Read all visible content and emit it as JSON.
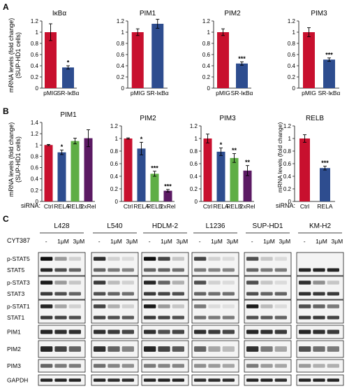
{
  "panels": {
    "a": {
      "letter": "A",
      "ylabel_line1": "mRNA levels (fold change)",
      "ylabel_line2": "(SUP-HD1 cells)"
    },
    "b": {
      "letter": "B",
      "ylabel_line1": "mRNA levels (fold change)",
      "ylabel_line2": "(SUP-HD1 cells)",
      "ylabel_relb": "mRNA levels (fold change)",
      "sirna_label": "siRNA:"
    },
    "c": {
      "letter": "C",
      "treatment_label": "CYT387"
    }
  },
  "colors": {
    "pmig": "#c8102e",
    "relb_green": "#5fae45",
    "sr_blue": "#2e4d8f",
    "rel_purple": "#5b1a63"
  },
  "chart_data": [
    {
      "type": "bar",
      "panel": "A",
      "title": "IκBα",
      "categories": [
        "pMIG",
        "SR-IκBα"
      ],
      "values": [
        1.0,
        0.37
      ],
      "errors": [
        0.15,
        0.03
      ],
      "significance": [
        "",
        "*"
      ],
      "colors": [
        "#c8102e",
        "#2e4d8f"
      ],
      "ylim": [
        0,
        1.2
      ],
      "yticks": [
        "0",
        "0.2",
        "0.4",
        "0.6",
        "0.8",
        "1",
        "1.2"
      ]
    },
    {
      "type": "bar",
      "panel": "A",
      "title": "PIM1",
      "categories": [
        "pMIG",
        "SR-IκBα"
      ],
      "values": [
        1.0,
        1.15
      ],
      "errors": [
        0.06,
        0.08
      ],
      "significance": [
        "",
        ""
      ],
      "colors": [
        "#c8102e",
        "#2e4d8f"
      ],
      "ylim": [
        0,
        1.2
      ],
      "yticks": [
        "0",
        "0.2",
        "0.4",
        "0.6",
        "0.8",
        "1",
        "1.2"
      ]
    },
    {
      "type": "bar",
      "panel": "A",
      "title": "PIM2",
      "categories": [
        "pMIG",
        "SR-IκBα"
      ],
      "values": [
        1.0,
        0.44
      ],
      "errors": [
        0.06,
        0.03
      ],
      "significance": [
        "",
        "***"
      ],
      "colors": [
        "#c8102e",
        "#2e4d8f"
      ],
      "ylim": [
        0,
        1.2
      ],
      "yticks": [
        "0",
        "0.2",
        "0.4",
        "0.6",
        "0.8",
        "1",
        "1.2"
      ]
    },
    {
      "type": "bar",
      "panel": "A",
      "title": "PIM3",
      "categories": [
        "pMIG",
        "SR-IκBα"
      ],
      "values": [
        1.0,
        0.51
      ],
      "errors": [
        0.08,
        0.03
      ],
      "significance": [
        "",
        "***"
      ],
      "colors": [
        "#c8102e",
        "#2e4d8f"
      ],
      "ylim": [
        0,
        1.2
      ],
      "yticks": [
        "0",
        "0.2",
        "0.4",
        "0.6",
        "0.8",
        "1",
        "1.2"
      ]
    },
    {
      "type": "bar",
      "panel": "B",
      "title": "PIM1",
      "categories": [
        "Ctrl",
        "RELA",
        "RELB",
        "2xRel"
      ],
      "values": [
        1.0,
        0.87,
        1.07,
        1.12
      ],
      "errors": [
        0.01,
        0.04,
        0.05,
        0.15
      ],
      "significance": [
        "",
        "*",
        "",
        ""
      ],
      "colors": [
        "#c8102e",
        "#2e4d8f",
        "#5fae45",
        "#5b1a63"
      ],
      "ylim": [
        0,
        1.4
      ],
      "yticks": [
        "0",
        "0.2",
        "0.4",
        "0.6",
        "0.8",
        "1",
        "1.2",
        "1.4"
      ]
    },
    {
      "type": "bar",
      "panel": "B",
      "title": "PIM2",
      "categories": [
        "Ctrl",
        "RELA",
        "RELB",
        "2xRel"
      ],
      "values": [
        1.0,
        0.84,
        0.44,
        0.17
      ],
      "errors": [
        0.01,
        0.1,
        0.04,
        0.02
      ],
      "significance": [
        "",
        "*",
        "***",
        "***"
      ],
      "colors": [
        "#c8102e",
        "#2e4d8f",
        "#5fae45",
        "#5b1a63"
      ],
      "ylim": [
        0,
        1.2
      ],
      "yticks": [
        "0",
        "0.2",
        "0.4",
        "0.6",
        "0.8",
        "1",
        "1.2"
      ]
    },
    {
      "type": "bar",
      "panel": "B",
      "title": "PIM3",
      "categories": [
        "Ctrl",
        "RELA",
        "RELB",
        "2xRel"
      ],
      "values": [
        1.0,
        0.79,
        0.69,
        0.49
      ],
      "errors": [
        0.07,
        0.06,
        0.07,
        0.08
      ],
      "significance": [
        "",
        "*",
        "**",
        "**"
      ],
      "colors": [
        "#c8102e",
        "#2e4d8f",
        "#5fae45",
        "#5b1a63"
      ],
      "ylim": [
        0,
        1.2
      ],
      "yticks": [
        "0",
        "0.2",
        "0.4",
        "0.6",
        "0.8",
        "1",
        "1.2"
      ]
    },
    {
      "type": "bar",
      "panel": "B",
      "title": "RELB",
      "categories": [
        "Ctrl",
        "RELA"
      ],
      "values": [
        1.0,
        0.53
      ],
      "errors": [
        0.06,
        0.03
      ],
      "significance": [
        "",
        "***"
      ],
      "colors": [
        "#c8102e",
        "#2e4d8f"
      ],
      "ylim": [
        0,
        1.2
      ],
      "yticks": [
        "0",
        "0.2",
        "0.4",
        "0.6",
        "0.8",
        "1",
        "1.2"
      ]
    }
  ],
  "blot": {
    "cell_lines": [
      "L428",
      "L540",
      "HDLM-2",
      "L1236",
      "SUP-HD1",
      "KM-H2"
    ],
    "doses": [
      "-",
      "1μM",
      "3μM"
    ],
    "rows": [
      "p-STAT5",
      "STAT5",
      "p-STAT3",
      "STAT3",
      "p-STAT1",
      "STAT1",
      "PIM1",
      "PIM2",
      "PIM3",
      "GAPDH"
    ],
    "intensities": {
      "p-STAT5": [
        [
          1,
          0.35,
          0.1
        ],
        [
          0.85,
          0.1,
          0.05
        ],
        [
          1,
          0.75,
          0.15
        ],
        [
          0.75,
          0.1,
          0.05
        ],
        [
          0.7,
          0.15,
          0.05
        ],
        [
          0,
          0,
          0
        ]
      ],
      "STAT5": [
        [
          0.9,
          0.7,
          0.6
        ],
        [
          0.6,
          0.5,
          0.45
        ],
        [
          0.6,
          0.6,
          0.55
        ],
        [
          0.5,
          0.45,
          0.45
        ],
        [
          0.6,
          0.5,
          0.5
        ],
        [
          0.9,
          0.9,
          0.9
        ]
      ],
      "p-STAT3": [
        [
          0.95,
          0.35,
          0.15
        ],
        [
          0.8,
          0.2,
          0.1
        ],
        [
          0.9,
          0.6,
          0.25
        ],
        [
          0.7,
          0.1,
          0.05
        ],
        [
          0.7,
          0.15,
          0.05
        ],
        [
          0.85,
          0.4,
          0.15
        ]
      ],
      "STAT3": [
        [
          0.8,
          0.7,
          0.6
        ],
        [
          0.7,
          0.6,
          0.55
        ],
        [
          0.8,
          0.75,
          0.7
        ],
        [
          0.6,
          0.55,
          0.55
        ],
        [
          0.7,
          0.6,
          0.6
        ],
        [
          0.85,
          0.8,
          0.8
        ]
      ],
      "p-STAT1": [
        [
          0.9,
          0.3,
          0.1
        ],
        [
          0.75,
          0.25,
          0.1
        ],
        [
          0.95,
          0.35,
          0.15
        ],
        [
          0.5,
          0.05,
          0.03
        ],
        [
          0.95,
          0.2,
          0.05
        ],
        [
          0.7,
          0.6,
          0.5
        ]
      ],
      "STAT1": [
        [
          0.8,
          0.75,
          0.7
        ],
        [
          0.75,
          0.7,
          0.65
        ],
        [
          0.8,
          0.75,
          0.7
        ],
        [
          0.55,
          0.5,
          0.5
        ],
        [
          0.7,
          0.65,
          0.6
        ],
        [
          0.8,
          0.8,
          0.75
        ]
      ],
      "PIM1": [
        [
          0.9,
          0.85,
          0.85
        ],
        [
          0.85,
          0.8,
          0.75
        ],
        [
          0.85,
          0.7,
          0.75
        ],
        [
          0.85,
          0.8,
          0.75
        ],
        [
          0.9,
          0.85,
          0.8
        ],
        [
          0.9,
          0.85,
          0.8
        ]
      ],
      "PIM2": [
        [
          0.9,
          0.75,
          0.6
        ],
        [
          0.85,
          0.6,
          0.45
        ],
        [
          0.9,
          0.75,
          0.65
        ],
        [
          0.6,
          0.3,
          0.2
        ],
        [
          0.85,
          0.5,
          0.3
        ],
        [
          0.7,
          0.55,
          0.5
        ]
      ],
      "PIM3": [
        [
          0.6,
          0.5,
          0.5
        ],
        [
          0.55,
          0.45,
          0.4
        ],
        [
          0.5,
          0.45,
          0.45
        ],
        [
          0.4,
          0.35,
          0.3
        ],
        [
          0.5,
          0.35,
          0.3
        ],
        [
          0.35,
          0.25,
          0.25
        ]
      ],
      "GAPDH": [
        [
          0.9,
          0.9,
          0.9
        ],
        [
          0.9,
          0.85,
          0.85
        ],
        [
          0.9,
          0.9,
          0.9
        ],
        [
          0.85,
          0.85,
          0.85
        ],
        [
          0.9,
          0.9,
          0.85
        ],
        [
          0.9,
          0.9,
          0.9
        ]
      ]
    }
  }
}
